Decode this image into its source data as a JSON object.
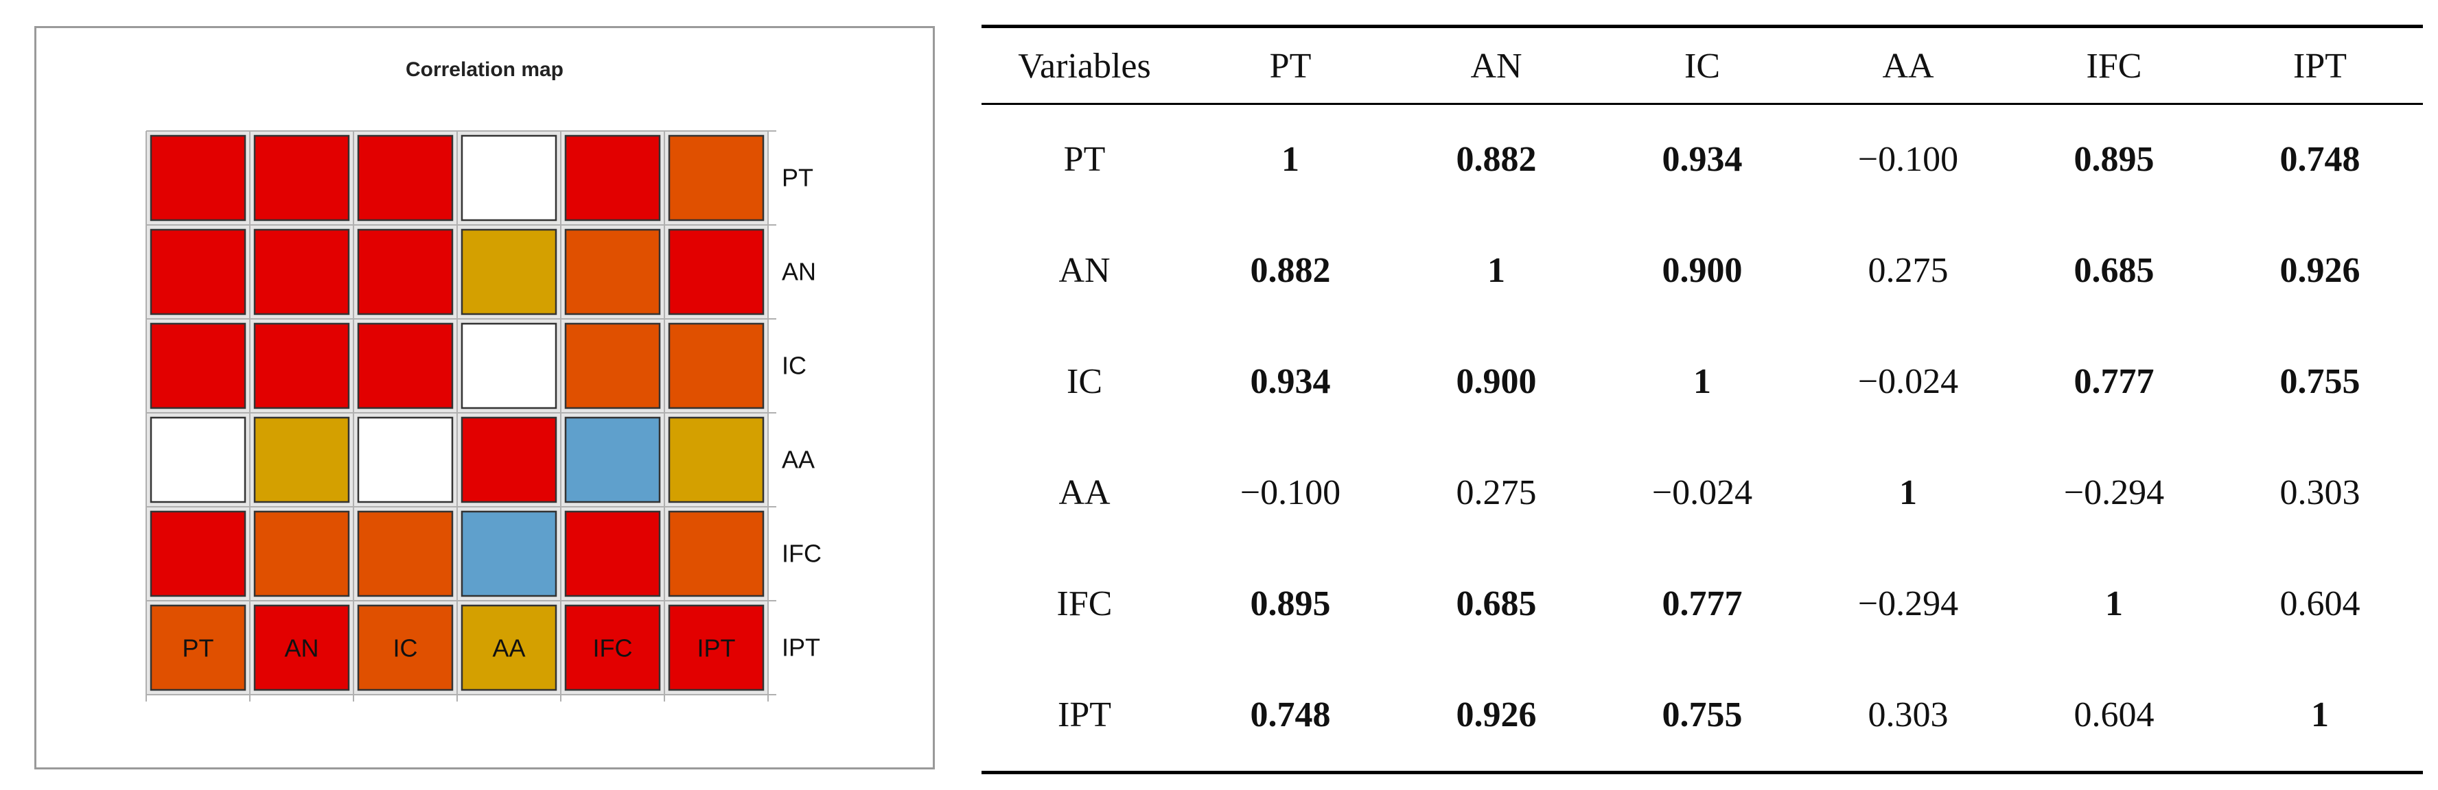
{
  "chart_data": [
    {
      "type": "heatmap",
      "title": "Correlation map",
      "rows": [
        "PT",
        "AN",
        "IC",
        "AA",
        "IFC",
        "IPT"
      ],
      "columns": [
        "PT",
        "AN",
        "IC",
        "AA",
        "IFC",
        "IPT"
      ],
      "cell_colors": [
        [
          "red",
          "red",
          "red",
          "white",
          "red",
          "orange"
        ],
        [
          "red",
          "red",
          "red",
          "gold",
          "orange",
          "red"
        ],
        [
          "red",
          "red",
          "red",
          "white",
          "orange",
          "orange"
        ],
        [
          "white",
          "gold",
          "white",
          "red",
          "blue",
          "gold"
        ],
        [
          "red",
          "orange",
          "orange",
          "blue",
          "red",
          "orange"
        ],
        [
          "orange",
          "red",
          "orange",
          "gold",
          "red",
          "red"
        ]
      ],
      "palette": {
        "red": "#e20000",
        "orange": "#e05000",
        "gold": "#d4a000",
        "blue": "#5fa0cc",
        "white": "#ffffff"
      },
      "grid": true
    },
    {
      "type": "table",
      "headers": [
        "Variables",
        "PT",
        "AN",
        "IC",
        "AA",
        "IFC",
        "IPT"
      ],
      "rows": [
        {
          "label": "PT",
          "values": [
            "1",
            "0.882",
            "0.934",
            "−0.100",
            "0.895",
            "0.748"
          ],
          "bold": [
            true,
            true,
            true,
            false,
            true,
            true
          ]
        },
        {
          "label": "AN",
          "values": [
            "0.882",
            "1",
            "0.900",
            "0.275",
            "0.685",
            "0.926"
          ],
          "bold": [
            true,
            true,
            true,
            false,
            true,
            true
          ]
        },
        {
          "label": "IC",
          "values": [
            "0.934",
            "0.900",
            "1",
            "−0.024",
            "0.777",
            "0.755"
          ],
          "bold": [
            true,
            true,
            true,
            false,
            true,
            true
          ]
        },
        {
          "label": "AA",
          "values": [
            "−0.100",
            "0.275",
            "−0.024",
            "1",
            "−0.294",
            "0.303"
          ],
          "bold": [
            false,
            false,
            false,
            true,
            false,
            false
          ]
        },
        {
          "label": "IFC",
          "values": [
            "0.895",
            "0.685",
            "0.777",
            "−0.294",
            "1",
            "0.604"
          ],
          "bold": [
            true,
            true,
            true,
            false,
            true,
            false
          ]
        },
        {
          "label": "IPT",
          "values": [
            "0.748",
            "0.926",
            "0.755",
            "0.303",
            "0.604",
            "1"
          ],
          "bold": [
            true,
            true,
            true,
            false,
            false,
            true
          ]
        }
      ]
    }
  ]
}
